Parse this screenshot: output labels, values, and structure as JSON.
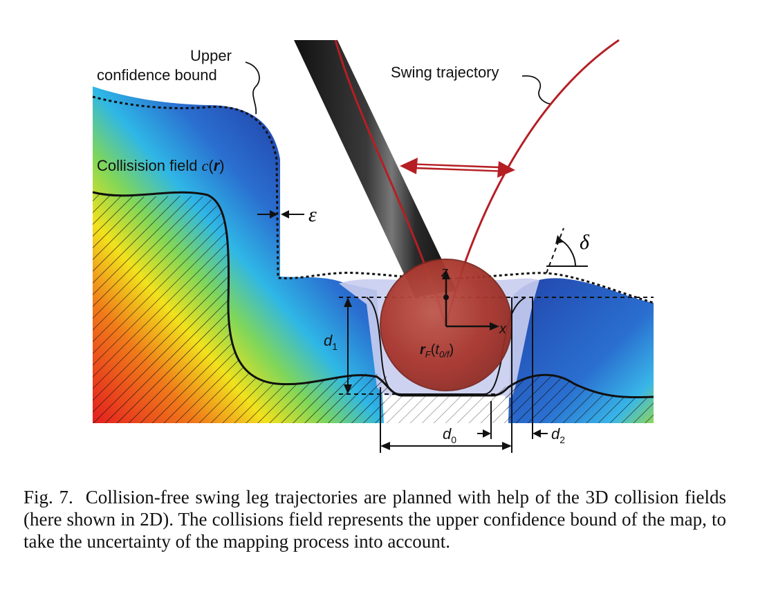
{
  "figure": {
    "labels": {
      "upper_bound_line1": "Upper",
      "upper_bound_line2": "confidence bound",
      "swing_trajectory": "Swing trajectory",
      "collision_field_prefix": "Collisision field ",
      "collision_field_symbol": "c",
      "collision_field_arg": "r",
      "epsilon": "ε",
      "delta": "δ",
      "axis_z": "z",
      "axis_x": "x",
      "foot_position_symbol": "r",
      "foot_position_sub": "F",
      "foot_position_time": "t",
      "foot_position_time_sub": "0/f",
      "d0": "d",
      "d0_sub": "0",
      "d1": "d",
      "d1_sub": "1",
      "d2": "d",
      "d2_sub": "2"
    },
    "colors": {
      "trajectory": "#b51f24",
      "foot": "#a8352c",
      "field_low": "#1f3fa0",
      "field_high": "#e41e1e",
      "uncertainty": "#c9cdf0"
    }
  },
  "caption": {
    "number": "Fig. 7.",
    "text": "Collision-free swing leg trajectories are planned with help of the 3D collision fields (here shown in 2D). The collisions field represents the upper confidence bound of the map, to take the uncertainty of the mapping process into account."
  }
}
